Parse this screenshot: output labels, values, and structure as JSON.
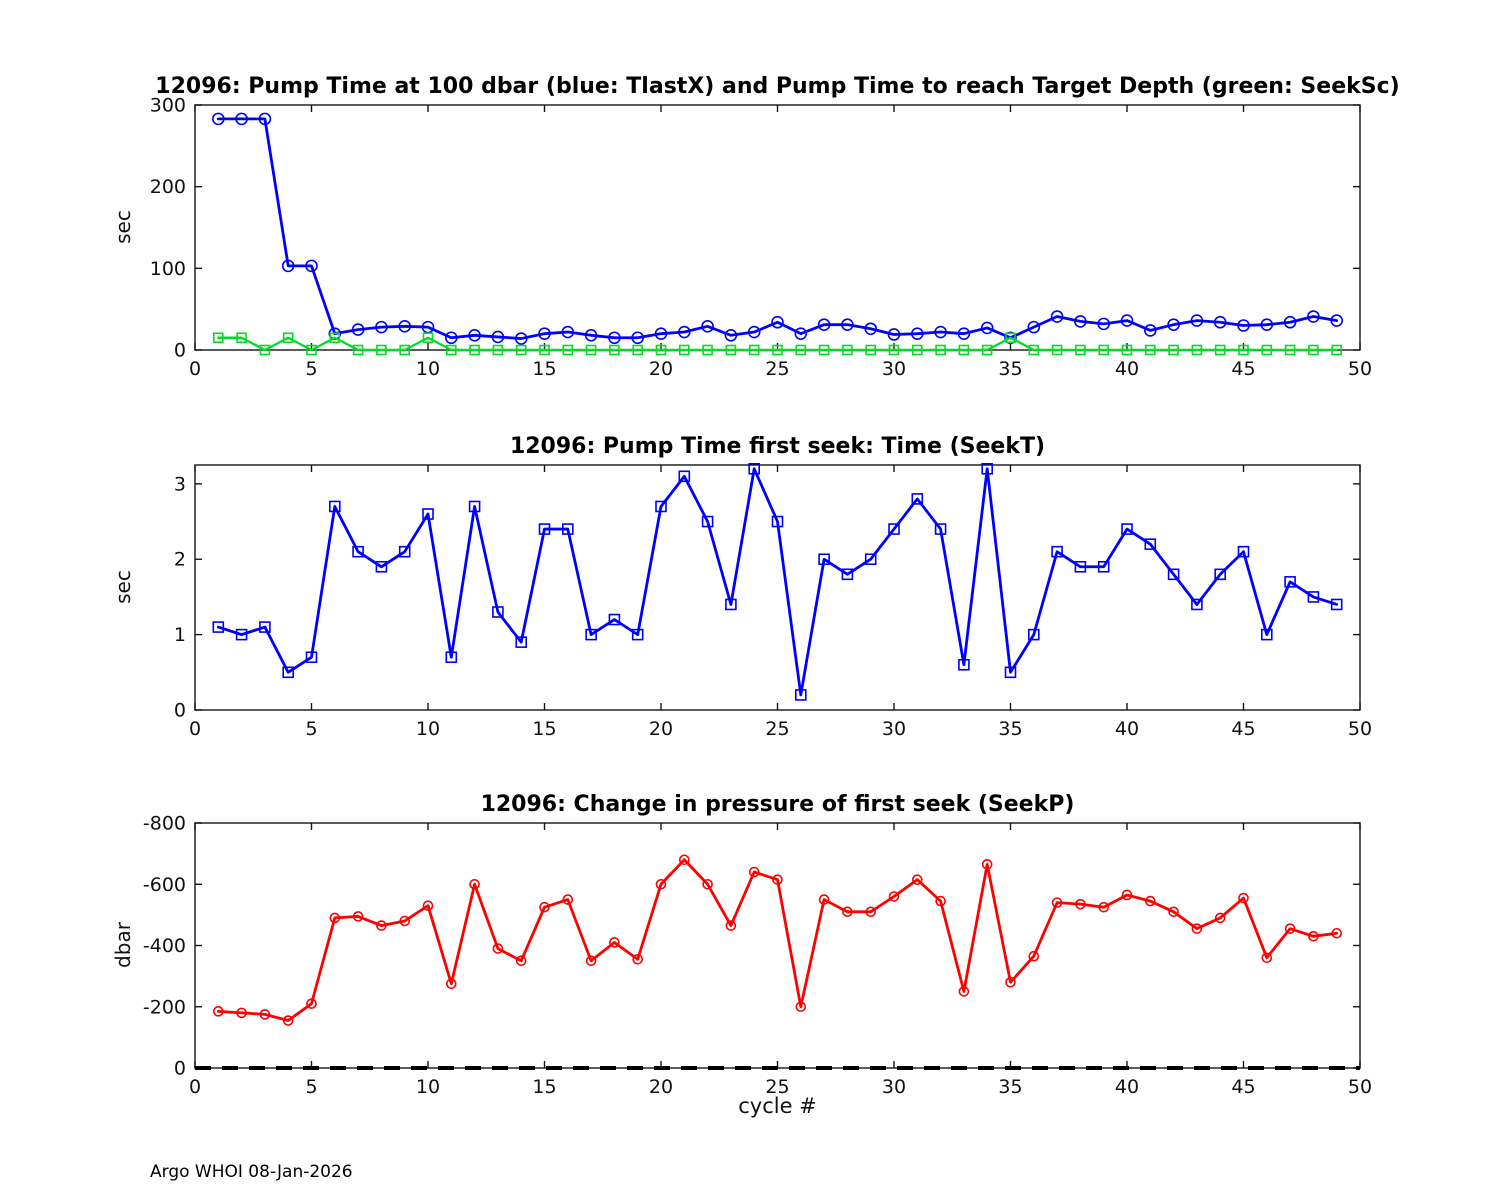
{
  "figure": {
    "footer": "Argo WHOI 08-Jan-2026"
  },
  "chart_data": [
    {
      "type": "line",
      "title": "12096:  Pump Time at 100 dbar (blue: TlastX) and Pump Time to reach Target Depth (green: SeekSc)",
      "ylabel": "sec",
      "xlabel": "",
      "xlim": [
        0,
        50
      ],
      "ylim": [
        0,
        300
      ],
      "xticks": [
        0,
        5,
        10,
        15,
        20,
        25,
        30,
        35,
        40,
        45,
        50
      ],
      "yticks": [
        0,
        100,
        200,
        300
      ],
      "grid": false,
      "legend_position": "none",
      "x": [
        1,
        2,
        3,
        4,
        5,
        6,
        7,
        8,
        9,
        10,
        11,
        12,
        13,
        14,
        15,
        16,
        17,
        18,
        19,
        20,
        21,
        22,
        23,
        24,
        25,
        26,
        27,
        28,
        29,
        30,
        31,
        32,
        33,
        34,
        35,
        36,
        37,
        38,
        39,
        40,
        41,
        42,
        43,
        44,
        45,
        46,
        47,
        48,
        49
      ],
      "series": [
        {
          "name": "TlastX",
          "color": "#0000ff",
          "marker": "circle",
          "marker_size": 11,
          "line_width": 2.8,
          "values": [
            283,
            283,
            283,
            103,
            103,
            20,
            25,
            28,
            29,
            28,
            15,
            18,
            16,
            14,
            20,
            22,
            18,
            15,
            15,
            20,
            22,
            29,
            18,
            22,
            34,
            20,
            31,
            31,
            26,
            19,
            20,
            22,
            20,
            27,
            15,
            28,
            41,
            35,
            32,
            36,
            24,
            31,
            36,
            34,
            30,
            31,
            34,
            41,
            36
          ]
        },
        {
          "name": "SeekSc",
          "color": "#00dd22",
          "marker": "square",
          "marker_size": 9,
          "line_width": 2.4,
          "values": [
            15,
            15,
            0,
            15,
            0,
            15,
            0,
            0,
            0,
            15,
            0,
            0,
            0,
            0,
            0,
            0,
            0,
            0,
            0,
            0,
            0,
            0,
            0,
            0,
            0,
            0,
            0,
            0,
            0,
            0,
            0,
            0,
            0,
            0,
            15,
            0,
            0,
            0,
            0,
            0,
            0,
            0,
            0,
            0,
            0,
            0,
            0,
            0,
            0
          ]
        }
      ]
    },
    {
      "type": "line",
      "title": "12096: Pump Time first seek: Time (SeekT)",
      "ylabel": "sec",
      "xlabel": "",
      "xlim": [
        0,
        50
      ],
      "ylim": [
        0,
        3.25
      ],
      "xticks": [
        0,
        5,
        10,
        15,
        20,
        25,
        30,
        35,
        40,
        45,
        50
      ],
      "yticks": [
        0,
        1,
        2,
        3
      ],
      "grid": false,
      "legend_position": "none",
      "x": [
        1,
        2,
        3,
        4,
        5,
        6,
        7,
        8,
        9,
        10,
        11,
        12,
        13,
        14,
        15,
        16,
        17,
        18,
        19,
        20,
        21,
        22,
        23,
        24,
        25,
        26,
        27,
        28,
        29,
        30,
        31,
        32,
        33,
        34,
        35,
        36,
        37,
        38,
        39,
        40,
        41,
        42,
        43,
        44,
        45,
        46,
        47,
        48,
        49
      ],
      "series": [
        {
          "name": "SeekT",
          "color": "#0000ff",
          "marker": "square",
          "marker_size": 10,
          "line_width": 2.8,
          "values": [
            1.1,
            1.0,
            1.1,
            0.5,
            0.7,
            2.7,
            2.1,
            1.9,
            2.1,
            2.6,
            0.7,
            2.7,
            1.3,
            0.9,
            2.4,
            2.4,
            1.0,
            1.2,
            1.0,
            2.7,
            3.1,
            2.5,
            1.4,
            3.2,
            2.5,
            0.2,
            2.0,
            1.8,
            2.0,
            2.4,
            2.8,
            2.4,
            0.6,
            3.2,
            0.5,
            1.0,
            2.1,
            1.9,
            1.9,
            2.4,
            2.2,
            1.8,
            1.4,
            1.8,
            2.1,
            1.0,
            1.7,
            1.5,
            1.4
          ]
        }
      ]
    },
    {
      "type": "line",
      "title": "12096: Change in pressure of first seek (SeekP)",
      "ylabel": "dbar",
      "xlabel": "cycle #",
      "xlim": [
        0,
        50
      ],
      "ylim": [
        0,
        -800
      ],
      "xticks": [
        0,
        5,
        10,
        15,
        20,
        25,
        30,
        35,
        40,
        45,
        50
      ],
      "yticks": [
        -800,
        -600,
        -400,
        -200,
        0
      ],
      "grid": false,
      "legend_position": "none",
      "zero_line": {
        "y": 0,
        "color": "#000000",
        "style": "dashed",
        "line_width": 4
      },
      "x": [
        1,
        2,
        3,
        4,
        5,
        6,
        7,
        8,
        9,
        10,
        11,
        12,
        13,
        14,
        15,
        16,
        17,
        18,
        19,
        20,
        21,
        22,
        23,
        24,
        25,
        26,
        27,
        28,
        29,
        30,
        31,
        32,
        33,
        34,
        35,
        36,
        37,
        38,
        39,
        40,
        41,
        42,
        43,
        44,
        45,
        46,
        47,
        48,
        49
      ],
      "series": [
        {
          "name": "SeekP",
          "color": "#ff0000",
          "marker": "circle",
          "marker_size": 9,
          "line_width": 2.8,
          "values": [
            -185,
            -180,
            -175,
            -155,
            -210,
            -490,
            -495,
            -465,
            -480,
            -530,
            -275,
            -600,
            -390,
            -350,
            -525,
            -550,
            -350,
            -410,
            -355,
            -600,
            -680,
            -600,
            -465,
            -640,
            -615,
            -200,
            -550,
            -510,
            -510,
            -560,
            -615,
            -545,
            -250,
            -665,
            -280,
            -365,
            -540,
            -535,
            -525,
            -565,
            -545,
            -510,
            -455,
            -490,
            -555,
            -360,
            -455,
            -430,
            -440
          ]
        }
      ]
    }
  ]
}
